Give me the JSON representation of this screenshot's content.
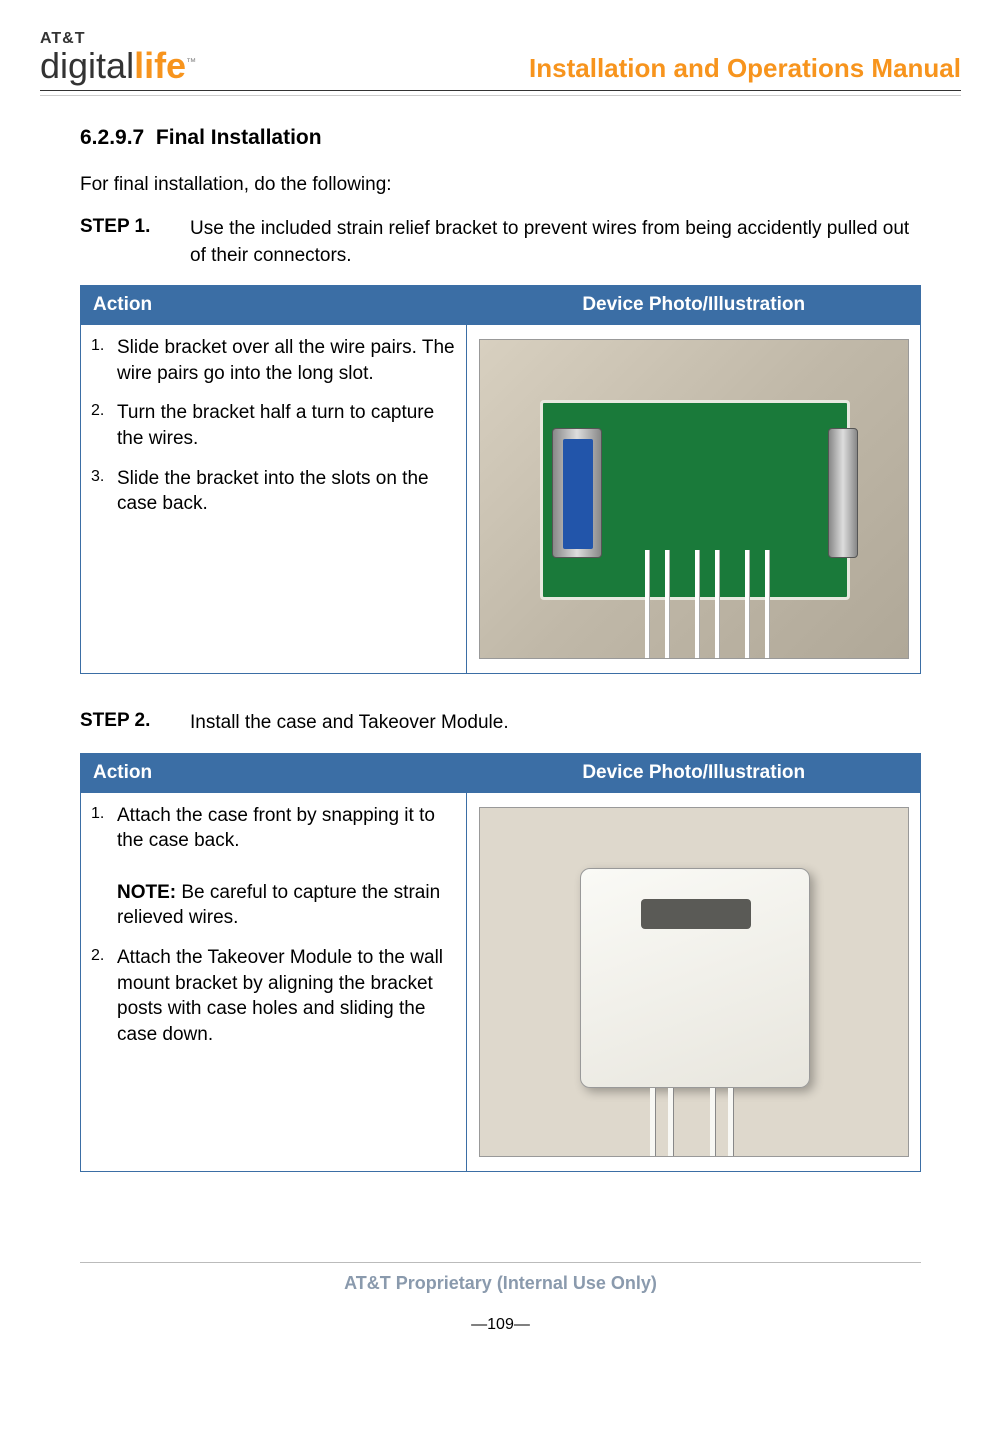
{
  "header": {
    "logo_prefix": "AT&T",
    "logo_word1": "digital",
    "logo_word2": "life",
    "logo_tm": "™",
    "doc_title": "Installation and Operations Manual"
  },
  "section": {
    "number": "6.2.9.7",
    "title": "Final Installation",
    "intro": "For final installation, do the following:"
  },
  "steps": [
    {
      "label": "STEP 1.",
      "text": "Use the included strain relief bracket to prevent wires from being accidently pulled out of their connectors.",
      "table": {
        "col_action": "Action",
        "col_photo": "Device Photo/Illustration",
        "items": [
          {
            "num": "1.",
            "text": "Slide bracket over all the wire pairs. The wire pairs go into the long slot."
          },
          {
            "num": "2.",
            "text": "Turn the bracket half a turn to capture the wires."
          },
          {
            "num": "3.",
            "text": "Slide the bracket into the slots on the case back."
          }
        ]
      }
    },
    {
      "label": "STEP 2.",
      "text": "Install the case and Takeover Module.",
      "table": {
        "col_action": "Action",
        "col_photo": "Device Photo/Illustration",
        "items": [
          {
            "num": "1.",
            "text": "Attach the case front by snapping it to the case back.",
            "note_label": "NOTE:",
            "note_text": " Be careful to capture the strain relieved wires."
          },
          {
            "num": "2.",
            "text": "Attach the Takeover Module to the wall mount bracket by aligning the bracket posts with case holes and sliding the case down."
          }
        ]
      }
    }
  ],
  "footer": {
    "proprietary": "AT&T Proprietary (Internal Use Only)",
    "page": "—109—"
  },
  "colors": {
    "brand_orange": "#f7941d",
    "table_header_bg": "#3b6ea5",
    "table_header_fg": "#ffffff",
    "footer_text": "#8a9aad"
  }
}
